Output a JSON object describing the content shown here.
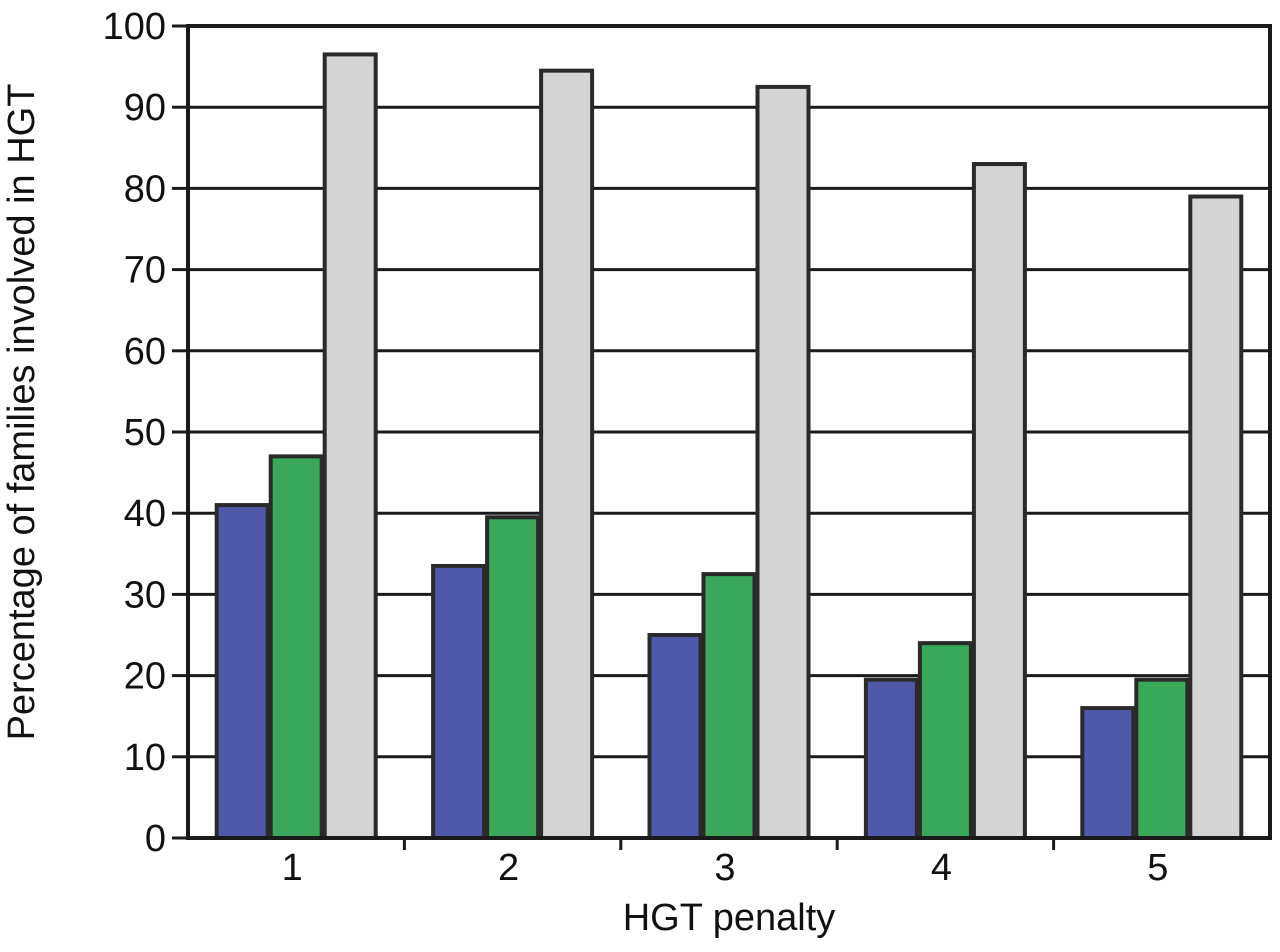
{
  "chart_data": {
    "type": "bar",
    "title": "",
    "xlabel": "HGT penalty",
    "ylabel": "Percentage of families involved in HGT",
    "categories": [
      "1",
      "2",
      "3",
      "4",
      "5"
    ],
    "ylim": [
      0,
      100
    ],
    "yticks": [
      "0",
      "10",
      "20",
      "30",
      "40",
      "50",
      "60",
      "70",
      "80",
      "90",
      "100"
    ],
    "grid": true,
    "legend": "none",
    "series": [
      {
        "color": "#5058a8",
        "values": [
          41,
          33.5,
          25,
          19.5,
          16
        ]
      },
      {
        "color": "#3aa85a",
        "values": [
          47,
          39.5,
          32.5,
          24,
          19.5
        ]
      },
      {
        "color": "#d4d4d4",
        "values": [
          96.5,
          94.5,
          92.5,
          83,
          79
        ]
      }
    ]
  }
}
